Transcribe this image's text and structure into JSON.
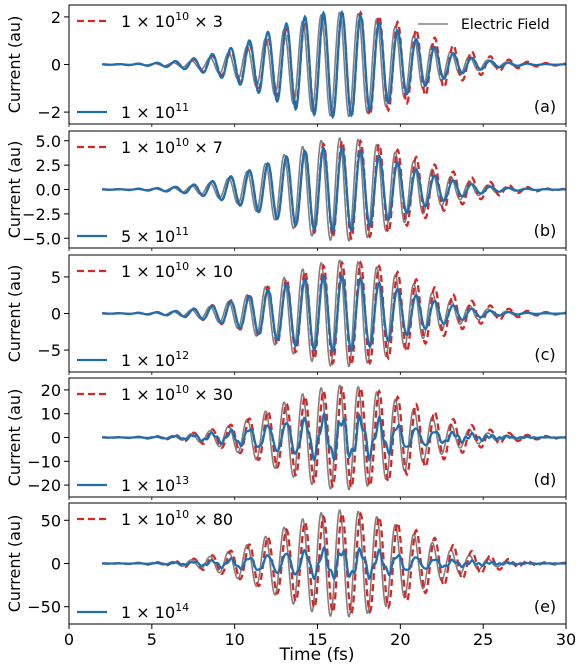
{
  "figure": {
    "xlabel": "Time (fs)",
    "shared_series_name": "Electric Field",
    "colors": {
      "field": "#808080",
      "scaled_ref": "#d62728",
      "current": "#1f6faf"
    }
  },
  "chart_data": [
    {
      "type": "line",
      "panel_label": "(a)",
      "ylabel": "Current (au)",
      "xlim": [
        0,
        30
      ],
      "ylim": [
        -2.5,
        2.5
      ],
      "yticks": [
        -2,
        0,
        2
      ],
      "ytick_labels": [
        "−2",
        "0",
        "2"
      ],
      "xticks": [
        0,
        5,
        10,
        15,
        20,
        25,
        30
      ],
      "series": [
        {
          "name": "Electric Field",
          "style": "solid",
          "color": "#808080",
          "peak": 2.2,
          "envelope": "gaussian center 16.5 fs, range 2–30 fs, period ~1.1 fs"
        },
        {
          "name": "1 × 10^10 × 3",
          "style": "dashed",
          "color": "#d62728",
          "peak": 2.2
        },
        {
          "name": "1 × 10^11",
          "style": "solid",
          "color": "#1f6faf",
          "peak": 2.2
        }
      ]
    },
    {
      "type": "line",
      "panel_label": "(b)",
      "ylabel": "Current (au)",
      "xlim": [
        0,
        30
      ],
      "ylim": [
        -6.0,
        6.0
      ],
      "yticks": [
        -5,
        -2.5,
        0,
        2.5,
        5
      ],
      "ytick_labels": [
        "−5.0",
        "−2.5",
        "0.0",
        "2.5",
        "5.0"
      ],
      "series": [
        {
          "name": "Electric Field",
          "style": "solid",
          "color": "#808080",
          "peak": 5.3
        },
        {
          "name": "1 × 10^10 × 7",
          "style": "dashed",
          "color": "#d62728",
          "peak": 5.0
        },
        {
          "name": "5 × 10^11",
          "style": "solid",
          "color": "#1f6faf",
          "peak": 4.3
        }
      ]
    },
    {
      "type": "line",
      "panel_label": "(c)",
      "ylabel": "Current (au)",
      "xlim": [
        0,
        30
      ],
      "ylim": [
        -8.0,
        8.0
      ],
      "yticks": [
        -5,
        0,
        5
      ],
      "ytick_labels": [
        "−5",
        "0",
        "5"
      ],
      "series": [
        {
          "name": "Electric Field",
          "style": "solid",
          "color": "#808080",
          "peak": 7.3
        },
        {
          "name": "1 × 10^10 × 10",
          "style": "dashed",
          "color": "#d62728",
          "peak": 7.0
        },
        {
          "name": "1 × 10^12",
          "style": "solid",
          "color": "#1f6faf",
          "peak": 5.2
        }
      ]
    },
    {
      "type": "line",
      "panel_label": "(d)",
      "ylabel": "Current (au)",
      "xlim": [
        0,
        30
      ],
      "ylim": [
        -25,
        25
      ],
      "yticks": [
        -20,
        -10,
        0,
        10,
        20
      ],
      "ytick_labels": [
        "−20",
        "−10",
        "0",
        "10",
        "20"
      ],
      "series": [
        {
          "name": "Electric Field",
          "style": "solid",
          "color": "#808080",
          "peak": 22
        },
        {
          "name": "1 × 10^10 × 30",
          "style": "dashed",
          "color": "#d62728",
          "peak": 21
        },
        {
          "name": "1 × 10^13",
          "style": "solid",
          "color": "#1f6faf",
          "peak": 8
        }
      ]
    },
    {
      "type": "line",
      "panel_label": "(e)",
      "ylabel": "Current (au)",
      "xlim": [
        0,
        30
      ],
      "ylim": [
        -70,
        70
      ],
      "yticks": [
        -50,
        0,
        50
      ],
      "ytick_labels": [
        "−50",
        "0",
        "50"
      ],
      "series": [
        {
          "name": "Electric Field",
          "style": "solid",
          "color": "#808080",
          "peak": 62
        },
        {
          "name": "1 × 10^10 × 80",
          "style": "dashed",
          "color": "#d62728",
          "peak": 58
        },
        {
          "name": "1 × 10^14",
          "style": "solid",
          "color": "#1f6faf",
          "peak": 15
        }
      ]
    }
  ],
  "legends": [
    {
      "dashed": {
        "base": "1 × 10",
        "exp": "10",
        "mult": " × 3"
      },
      "solid": {
        "base": "1 × 10",
        "exp": "11"
      }
    },
    {
      "dashed": {
        "base": "1 × 10",
        "exp": "10",
        "mult": " × 7"
      },
      "solid": {
        "base": "5 × 10",
        "exp": "11"
      }
    },
    {
      "dashed": {
        "base": "1 × 10",
        "exp": "10",
        "mult": " × 10"
      },
      "solid": {
        "base": "1 × 10",
        "exp": "12"
      }
    },
    {
      "dashed": {
        "base": "1 × 10",
        "exp": "10",
        "mult": " × 30"
      },
      "solid": {
        "base": "1 × 10",
        "exp": "13"
      }
    },
    {
      "dashed": {
        "base": "1 × 10",
        "exp": "10",
        "mult": " × 80"
      },
      "solid": {
        "base": "1 × 10",
        "exp": "14"
      }
    }
  ],
  "xtick_labels": [
    "0",
    "5",
    "10",
    "15",
    "20",
    "25",
    "30"
  ]
}
